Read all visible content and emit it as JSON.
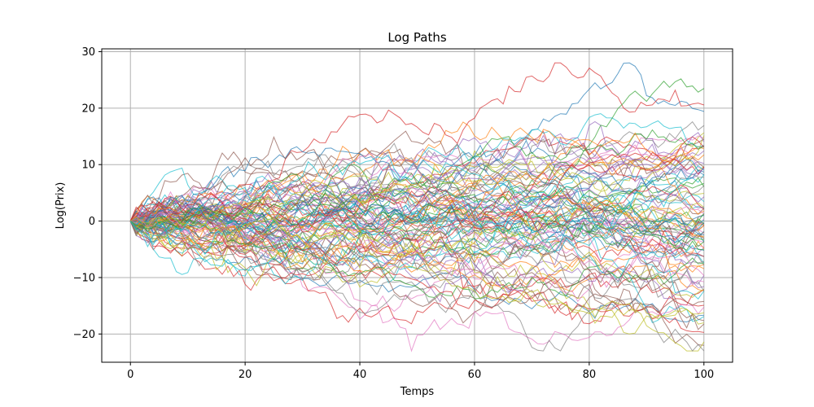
{
  "chart_data": {
    "type": "line",
    "title": "Log Paths",
    "xlabel": "Temps",
    "ylabel": "Log(Prix)",
    "xlim": [
      -5,
      105
    ],
    "ylim": [
      -25,
      30.5
    ],
    "xticks": [
      0,
      20,
      40,
      60,
      80,
      100
    ],
    "yticks": [
      -20,
      -10,
      0,
      10,
      20,
      30
    ],
    "grid": true,
    "legend": "none",
    "series_count": 100,
    "steps": 100,
    "start_value": 0,
    "approx_final_range": [
      -21,
      27
    ],
    "colors": [
      "#1f77b4",
      "#ff7f0e",
      "#2ca02c",
      "#d62728",
      "#9467bd",
      "#8c564b",
      "#e377c2",
      "#7f7f7f",
      "#bcbd22",
      "#17becf"
    ],
    "line_alpha": 0.7
  }
}
